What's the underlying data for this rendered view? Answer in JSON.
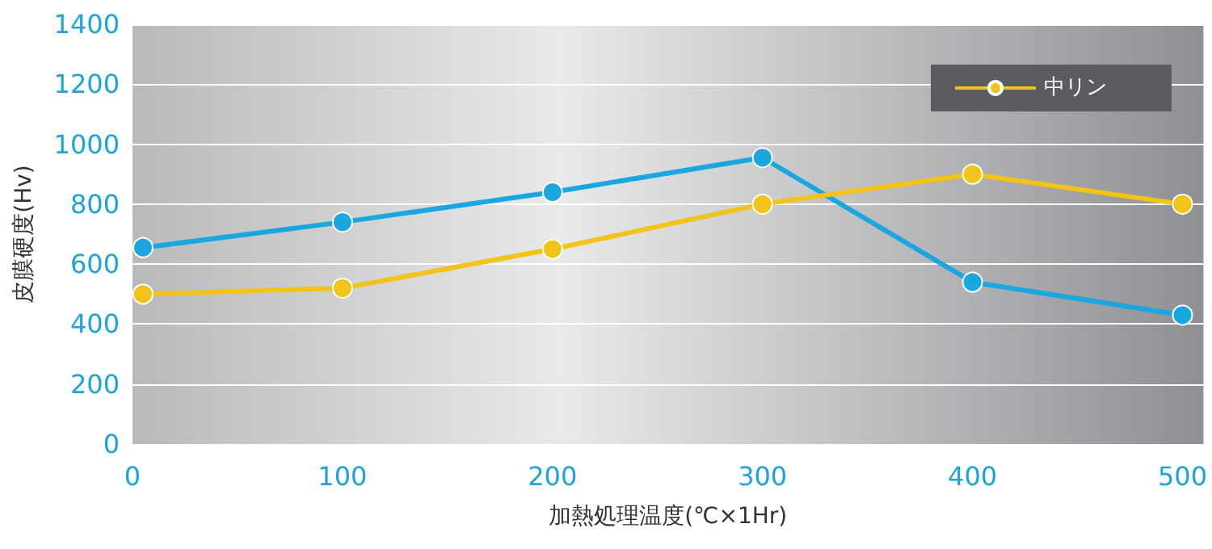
{
  "chart_data": {
    "type": "line",
    "xlabel": "加熱処理温度(℃×1Hr)",
    "ylabel": "皮膜硬度(Hv)",
    "xlim": [
      0,
      510
    ],
    "xticks": [
      0,
      100,
      200,
      300,
      400,
      500
    ],
    "ylim": [
      0,
      1400
    ],
    "yticks": [
      0,
      200,
      400,
      600,
      800,
      1000,
      1200,
      1400
    ],
    "x": [
      5,
      100,
      200,
      300,
      400,
      500
    ],
    "series": [
      {
        "color": "#1aa7e0",
        "values": [
          655,
          740,
          840,
          955,
          540,
          430
        ]
      },
      {
        "name": "中リン",
        "color": "#f2c318",
        "values": [
          500,
          520,
          650,
          800,
          900,
          800
        ]
      }
    ],
    "grid": "y",
    "legend": "top right",
    "marker": "circle",
    "line_style": "solid"
  }
}
